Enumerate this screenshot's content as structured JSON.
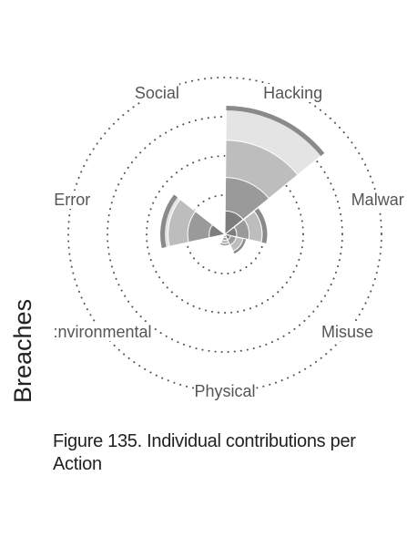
{
  "chart_data": {
    "type": "radial-bar",
    "title": "",
    "ylabel": "Breaches",
    "categories": [
      "Hacking",
      "Malware",
      "Misuse",
      "Physical",
      "Environmental",
      "Error",
      "Social"
    ],
    "category_labels": [
      "Hacking",
      "Malwar",
      "Misuse",
      "Physical",
      ":nvironmental",
      "Error",
      "Social"
    ],
    "rlim": [
      0,
      4
    ],
    "ring_levels": [
      1,
      2,
      3,
      4
    ],
    "grid": true,
    "grid_style": "dotted circles",
    "layers": [
      {
        "values": [
          3.28,
          1.08,
          0.55,
          0.28,
          0.06,
          1.65,
          0.0
        ],
        "color": "#e4e4e4"
      },
      {
        "values": [
          2.4,
          0.95,
          0.48,
          0.24,
          0.05,
          1.45,
          0.0
        ],
        "color": "#bdbdbd"
      },
      {
        "values": [
          1.45,
          0.62,
          0.3,
          0.15,
          0.04,
          0.95,
          0.0
        ],
        "color": "#9a9a9a"
      },
      {
        "values": [
          0.6,
          0.3,
          0.15,
          0.08,
          0.02,
          0.4,
          0.0
        ],
        "color": "#7d7d7d"
      }
    ],
    "caption": "Figure 135. Individual contributions per Action"
  }
}
